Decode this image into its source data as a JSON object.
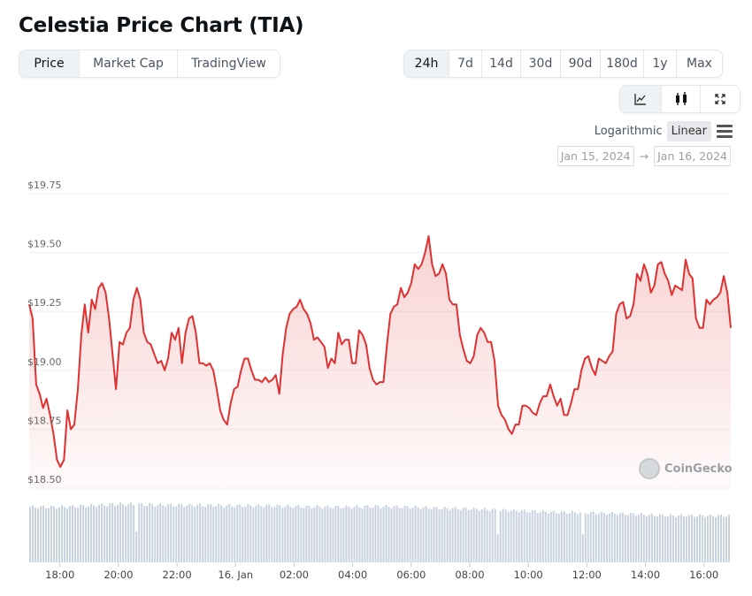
{
  "title": "Celestia Price Chart (TIA)",
  "tabs": [
    {
      "label": "Price",
      "active": true
    },
    {
      "label": "Market Cap"
    },
    {
      "label": "TradingView"
    }
  ],
  "ranges": [
    {
      "label": "24h",
      "active": true
    },
    {
      "label": "7d"
    },
    {
      "label": "14d"
    },
    {
      "label": "30d"
    },
    {
      "label": "90d"
    },
    {
      "label": "180d"
    },
    {
      "label": "1y"
    },
    {
      "label": "Max"
    }
  ],
  "chart_types": [
    {
      "icon": "line-chart-icon",
      "active": true
    },
    {
      "icon": "candlestick-icon"
    },
    {
      "icon": "fullscreen-icon"
    }
  ],
  "scale": {
    "log": "Logarithmic",
    "linear": "Linear",
    "selected": "Linear"
  },
  "dates": {
    "from": "Jan 15, 2024",
    "arrow": "→",
    "to": "Jan 16, 2024"
  },
  "watermark": "CoinGecko",
  "colors": {
    "line": "#e03131",
    "volume": "#c9d3e0"
  },
  "chart_data": {
    "type": "line",
    "title": "",
    "ylim": [
      18.5,
      19.75
    ],
    "yticks": [
      "$19.75",
      "$19.50",
      "$19.25",
      "$19.00",
      "$18.75",
      "$18.50"
    ],
    "ytick_values": [
      19.75,
      19.5,
      19.25,
      19.0,
      18.75,
      18.5
    ],
    "x_range": [
      "Jan 15 16:57",
      "Jan 16 16:55"
    ],
    "xticks": [
      "18:00",
      "20:00",
      "22:00",
      "16. Jan",
      "02:00",
      "04:00",
      "06:00",
      "08:00",
      "10:00",
      "12:00",
      "14:00",
      "16:00"
    ],
    "xtick_hours": [
      18,
      20,
      22,
      24,
      26,
      28,
      30,
      32,
      34,
      36,
      38,
      40
    ],
    "grid": true,
    "prices": [
      19.28,
      19.22,
      18.94,
      18.9,
      18.84,
      18.88,
      18.81,
      18.73,
      18.62,
      18.59,
      18.62,
      18.83,
      18.75,
      18.77,
      18.92,
      19.15,
      19.28,
      19.16,
      19.3,
      19.26,
      19.35,
      19.37,
      19.33,
      19.22,
      19.07,
      18.92,
      19.12,
      19.11,
      19.16,
      19.18,
      19.3,
      19.35,
      19.3,
      19.16,
      19.12,
      19.11,
      19.07,
      19.03,
      19.04,
      19.0,
      19.05,
      19.16,
      19.13,
      19.18,
      19.03,
      19.16,
      19.22,
      19.23,
      19.16,
      19.03,
      19.03,
      19.02,
      19.03,
      19.0,
      18.92,
      18.83,
      18.79,
      18.77,
      18.86,
      18.92,
      18.93,
      19.0,
      19.05,
      19.05,
      19.0,
      18.96,
      18.96,
      18.95,
      18.97,
      18.95,
      18.96,
      18.98,
      18.9,
      19.07,
      19.18,
      19.24,
      19.26,
      19.27,
      19.3,
      19.26,
      19.24,
      19.2,
      19.13,
      19.14,
      19.12,
      19.1,
      19.01,
      19.05,
      19.03,
      19.16,
      19.11,
      19.13,
      19.13,
      19.03,
      19.03,
      19.17,
      19.15,
      19.11,
      19.01,
      18.96,
      18.94,
      18.95,
      18.95,
      19.11,
      19.24,
      19.27,
      19.28,
      19.35,
      19.31,
      19.33,
      19.37,
      19.45,
      19.43,
      19.45,
      19.5,
      19.57,
      19.45,
      19.4,
      19.41,
      19.45,
      19.41,
      19.3,
      19.28,
      19.28,
      19.15,
      19.09,
      19.04,
      19.03,
      19.06,
      19.15,
      19.18,
      19.16,
      19.12,
      19.12,
      19.04,
      18.85,
      18.81,
      18.79,
      18.75,
      18.73,
      18.77,
      18.77,
      18.85,
      18.85,
      18.84,
      18.82,
      18.81,
      18.86,
      18.89,
      18.89,
      18.94,
      18.89,
      18.85,
      18.88,
      18.81,
      18.81,
      18.86,
      18.92,
      18.92,
      19.0,
      19.05,
      19.06,
      19.01,
      18.98,
      19.05,
      19.04,
      19.03,
      19.06,
      19.08,
      19.24,
      19.28,
      19.29,
      19.22,
      19.23,
      19.28,
      19.41,
      19.38,
      19.45,
      19.41,
      19.33,
      19.36,
      19.45,
      19.46,
      19.41,
      19.38,
      19.32,
      19.36,
      19.35,
      19.34,
      19.47,
      19.41,
      19.39,
      19.22,
      19.18,
      19.18,
      19.3,
      19.28,
      19.3,
      19.31,
      19.33,
      19.4,
      19.33,
      19.18
    ],
    "volume_relative": [
      0.95,
      0.95,
      0.97,
      1.0,
      0.99,
      0.98,
      0.98,
      0.97,
      0.97,
      0.96,
      0.95,
      0.95,
      0.96,
      0.95,
      0.93,
      0.92,
      0.9,
      0.88,
      0.86,
      0.85,
      0.84,
      0.82,
      0.8,
      0.8,
      0.8
    ]
  }
}
